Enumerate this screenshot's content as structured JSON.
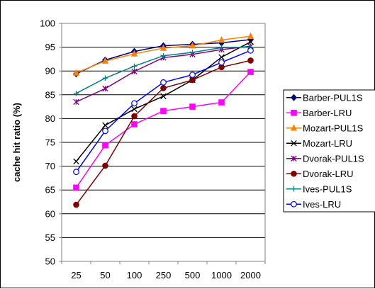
{
  "chart_data": {
    "type": "line",
    "x": [
      "25",
      "50",
      "100",
      "250",
      "500",
      "1000",
      "2000"
    ],
    "ylabel": "cache hit ratio (%)",
    "xlabel": "",
    "ylim": [
      50,
      100
    ],
    "yticks": [
      50,
      55,
      60,
      65,
      70,
      75,
      80,
      85,
      90,
      95,
      100
    ],
    "grid": "horizontal",
    "legend": "right",
    "series": [
      {
        "name": "Barber-PUL1S",
        "color": "#000080",
        "marker": "diamond",
        "values": [
          89.4,
          92.3,
          94.1,
          95.3,
          95.6,
          95.9,
          96.6
        ]
      },
      {
        "name": "Barber-LRU",
        "color": "#FF00FF",
        "marker": "square",
        "values": [
          65.5,
          74.4,
          78.8,
          81.6,
          82.5,
          83.4,
          89.8
        ]
      },
      {
        "name": "Mozart-PUL1S",
        "color": "#FF8000",
        "marker": "triangle",
        "values": [
          89.6,
          92.1,
          93.6,
          94.8,
          95.3,
          96.5,
          97.3
        ]
      },
      {
        "name": "Mozart-LRU",
        "color": "#000000",
        "marker": "x",
        "values": [
          71.0,
          78.6,
          82.0,
          84.7,
          88.1,
          92.9,
          96.1
        ]
      },
      {
        "name": "Dvorak-PUL1S",
        "color": "#800080",
        "marker": "star",
        "values": [
          83.5,
          86.3,
          89.9,
          92.8,
          93.5,
          94.5,
          95.2
        ]
      },
      {
        "name": "Dvorak-LRU",
        "color": "#800000",
        "marker": "circle",
        "values": [
          61.9,
          70.1,
          80.5,
          86.4,
          88.1,
          90.8,
          92.2
        ]
      },
      {
        "name": "Ives-PUL1S",
        "color": "#008080",
        "marker": "plus",
        "values": [
          85.3,
          88.5,
          91.0,
          93.2,
          93.9,
          94.9,
          95.0
        ]
      },
      {
        "name": "Ives-LRU",
        "color": "#0000FF",
        "marker": "opencircle",
        "values": [
          68.8,
          77.4,
          83.2,
          87.6,
          89.2,
          91.8,
          94.3
        ]
      }
    ]
  }
}
